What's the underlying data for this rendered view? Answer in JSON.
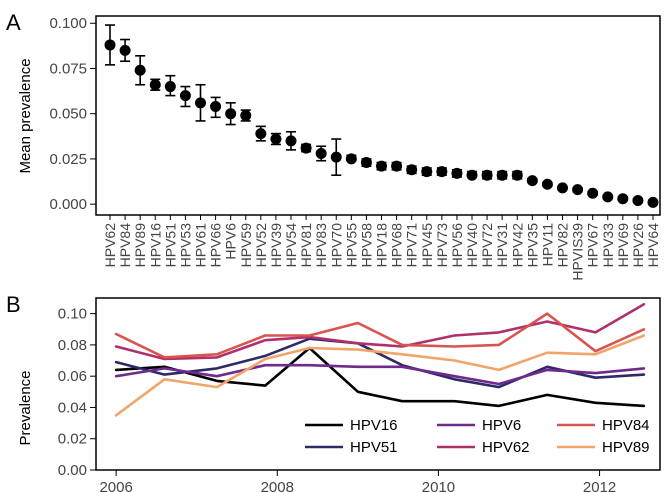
{
  "chart_data": [
    {
      "panel_label": "A",
      "type": "scatter",
      "ylabel": "Mean prevalence",
      "ylim": [
        -0.006,
        0.104
      ],
      "yticks": [
        "0.000",
        "0.025",
        "0.050",
        "0.075",
        "0.100"
      ],
      "error_bars": true,
      "categories": [
        "HPV62",
        "HPV84",
        "HPV89",
        "HPV16",
        "HPV51",
        "HPV53",
        "HPV61",
        "HPV66",
        "HPV6",
        "HPV59",
        "HPV52",
        "HPV39",
        "HPV54",
        "HPV81",
        "HPV83",
        "HPV70",
        "HPV55",
        "HPV58",
        "HPV18",
        "HPV68",
        "HPV71",
        "HPV45",
        "HPV73",
        "HPV56",
        "HPV40",
        "HPV72",
        "HPV31",
        "HPV42",
        "HPV35",
        "HPV11",
        "HPV82",
        "HPVIS39",
        "HPV67",
        "HPV33",
        "HPV69",
        "HPV26",
        "HPV64"
      ],
      "values": [
        0.088,
        0.085,
        0.074,
        0.066,
        0.065,
        0.06,
        0.056,
        0.054,
        0.05,
        0.049,
        0.039,
        0.036,
        0.035,
        0.031,
        0.028,
        0.026,
        0.025,
        0.023,
        0.021,
        0.021,
        0.019,
        0.018,
        0.018,
        0.017,
        0.016,
        0.016,
        0.016,
        0.016,
        0.013,
        0.011,
        0.009,
        0.008,
        0.006,
        0.004,
        0.003,
        0.002,
        0.001
      ],
      "error_low": [
        0.077,
        0.079,
        0.066,
        0.063,
        0.06,
        0.054,
        0.046,
        0.048,
        0.044,
        0.046,
        0.035,
        0.033,
        0.03,
        0.029,
        0.024,
        0.016,
        0.024,
        0.021,
        0.019,
        0.019,
        0.017,
        0.016,
        0.016,
        0.015,
        0.015,
        0.014,
        0.014,
        0.014,
        0.012,
        0.01,
        0.008,
        0.007,
        0.005,
        0.003,
        0.002,
        0.001,
        0.0
      ],
      "error_high": [
        0.099,
        0.091,
        0.082,
        0.069,
        0.071,
        0.065,
        0.066,
        0.059,
        0.056,
        0.052,
        0.043,
        0.039,
        0.04,
        0.033,
        0.032,
        0.036,
        0.027,
        0.025,
        0.023,
        0.023,
        0.021,
        0.02,
        0.02,
        0.019,
        0.018,
        0.018,
        0.018,
        0.018,
        0.014,
        0.012,
        0.01,
        0.009,
        0.007,
        0.005,
        0.004,
        0.003,
        0.002
      ]
    },
    {
      "panel_label": "B",
      "type": "line",
      "ylabel": "Prevalence",
      "xlim": [
        2005.75,
        2012.75
      ],
      "ylim": [
        0.0,
        0.11
      ],
      "xticks": [
        2006,
        2008,
        2010,
        2012
      ],
      "yticks": [
        "0.00",
        "0.02",
        "0.04",
        "0.06",
        "0.08",
        "0.10"
      ],
      "legend_position": "bottom-right",
      "x": [
        2006.0,
        2006.6,
        2007.25,
        2007.85,
        2008.4,
        2009.0,
        2009.55,
        2010.2,
        2010.75,
        2011.35,
        2011.95,
        2012.55
      ],
      "series": [
        {
          "name": "HPV16",
          "color": "#000000",
          "values": [
            0.064,
            0.066,
            0.057,
            0.054,
            0.078,
            0.05,
            0.044,
            0.044,
            0.041,
            0.048,
            0.043,
            0.041
          ]
        },
        {
          "name": "HPV51",
          "color": "#2e2a68",
          "values": [
            0.069,
            0.061,
            0.065,
            0.073,
            0.084,
            0.081,
            0.067,
            0.058,
            0.053,
            0.066,
            0.059,
            0.061
          ]
        },
        {
          "name": "HPV6",
          "color": "#6f2a8c",
          "values": [
            0.06,
            0.065,
            0.06,
            0.067,
            0.067,
            0.066,
            0.066,
            0.06,
            0.055,
            0.064,
            0.062,
            0.065
          ]
        },
        {
          "name": "HPV62",
          "color": "#b0306a",
          "values": [
            0.079,
            0.071,
            0.072,
            0.083,
            0.085,
            0.081,
            0.079,
            0.086,
            0.088,
            0.095,
            0.088,
            0.106
          ]
        },
        {
          "name": "HPV84",
          "color": "#d9534f",
          "values": [
            0.087,
            0.072,
            0.074,
            0.086,
            0.086,
            0.094,
            0.08,
            0.079,
            0.08,
            0.1,
            0.076,
            0.09
          ]
        },
        {
          "name": "HPV89",
          "color": "#f0a56b",
          "values": [
            0.035,
            0.058,
            0.053,
            0.071,
            0.078,
            0.077,
            0.074,
            0.07,
            0.064,
            0.075,
            0.074,
            0.086
          ]
        }
      ]
    }
  ]
}
